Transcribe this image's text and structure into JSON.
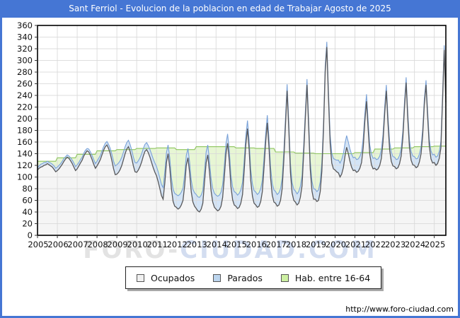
{
  "window": {
    "title": "Sant Ferriol - Evolucion de la poblacion en edad de Trabajar Agosto de 2025",
    "titlebar_color": "#4576d4",
    "border_color": "#4576d4",
    "footer_url": "http://www.foro-ciudad.com"
  },
  "watermark": {
    "part1": "FORO",
    "separator": "-",
    "part2": "CIUDAD.COM"
  },
  "legend": [
    {
      "label": "Ocupados",
      "swatch": "#f0f0f0"
    },
    {
      "label": "Parados",
      "swatch": "#bcd5ee"
    },
    {
      "label": "Hab. entre 16-64",
      "swatch": "#cdf0a2"
    }
  ],
  "chart_data": {
    "type": "area",
    "title": "Sant Ferriol - Evolucion de la poblacion en edad de Trabajar Agosto de 2025",
    "xlabel": "",
    "ylabel": "",
    "ylim": [
      0,
      360
    ],
    "y_tick_step": 20,
    "grid": true,
    "legend_position": "bottom",
    "x_monthly_from": "2005-01",
    "x_monthly_to": "2025-08",
    "months_count": 248,
    "x_tick_labels": [
      "2005",
      "2006",
      "2007",
      "2008",
      "2009",
      "2010",
      "2011",
      "2012",
      "2013",
      "2014",
      "2015",
      "2016",
      "2017",
      "2018",
      "2019",
      "2020",
      "2021",
      "2022",
      "2023",
      "2024",
      "2025"
    ],
    "colors": {
      "grid": "#d9d9d9",
      "plot_border": "#000000",
      "axis_text": "#111111",
      "plot_bg": "#ffffff"
    },
    "series": [
      {
        "name": "Ocupados",
        "role": "base",
        "line": "#58585a",
        "fill": "#f5f5f5",
        "values": [
          112,
          115,
          117,
          118,
          120,
          121,
          123,
          121,
          119,
          117,
          113,
          109,
          111,
          114,
          118,
          122,
          127,
          131,
          134,
          132,
          128,
          123,
          117,
          111,
          114,
          119,
          124,
          129,
          136,
          141,
          145,
          143,
          137,
          130,
          122,
          115,
          119,
          124,
          130,
          138,
          146,
          152,
          155,
          149,
          140,
          128,
          114,
          104,
          105,
          108,
          113,
          120,
          130,
          140,
          148,
          152,
          144,
          132,
          119,
          109,
          108,
          112,
          118,
          126,
          136,
          144,
          147,
          142,
          134,
          125,
          116,
          108,
          102,
          92,
          80,
          68,
          62,
          90,
          125,
          140,
          116,
          80,
          58,
          50,
          48,
          45,
          47,
          52,
          60,
          85,
          120,
          133,
          108,
          74,
          57,
          50,
          46,
          42,
          40,
          45,
          55,
          90,
          125,
          138,
          110,
          76,
          57,
          48,
          45,
          42,
          44,
          50,
          65,
          100,
          140,
          158,
          128,
          84,
          61,
          52,
          50,
          46,
          48,
          55,
          70,
          110,
          155,
          183,
          148,
          94,
          67,
          55,
          52,
          48,
          50,
          58,
          75,
          115,
          160,
          193,
          153,
          98,
          69,
          57,
          55,
          50,
          52,
          60,
          80,
          130,
          190,
          248,
          182,
          108,
          73,
          60,
          57,
          52,
          55,
          65,
          85,
          140,
          200,
          258,
          188,
          113,
          76,
          62,
          62,
          58,
          60,
          75,
          110,
          180,
          280,
          323,
          238,
          158,
          124,
          114,
          112,
          109,
          107,
          100,
          105,
          116,
          136,
          151,
          140,
          127,
          117,
          111,
          112,
          108,
          110,
          115,
          125,
          150,
          195,
          230,
          183,
          139,
          121,
          114,
          115,
          112,
          114,
          120,
          132,
          160,
          210,
          248,
          193,
          146,
          127,
          119,
          118,
          114,
          116,
          123,
          136,
          168,
          220,
          262,
          198,
          150,
          129,
          121,
          120,
          116,
          118,
          126,
          140,
          172,
          225,
          258,
          203,
          153,
          131,
          124,
          125,
          120,
          123,
          132,
          150,
          230,
          318,
          228
        ]
      },
      {
        "name": "Parados",
        "role": "stacked-on-Ocupados",
        "line": "#7aa2d8",
        "fill": "#d3e4f6",
        "values": [
          4,
          4,
          5,
          5,
          5,
          4,
          4,
          4,
          5,
          5,
          6,
          6,
          6,
          6,
          5,
          5,
          5,
          4,
          4,
          4,
          5,
          6,
          7,
          7,
          7,
          6,
          6,
          5,
          5,
          5,
          4,
          5,
          6,
          7,
          8,
          8,
          8,
          8,
          7,
          7,
          6,
          6,
          6,
          7,
          9,
          11,
          13,
          15,
          16,
          16,
          15,
          14,
          13,
          12,
          11,
          11,
          12,
          14,
          15,
          16,
          16,
          16,
          15,
          14,
          13,
          12,
          12,
          12,
          13,
          14,
          15,
          16,
          16,
          17,
          18,
          19,
          20,
          19,
          17,
          15,
          17,
          19,
          21,
          22,
          22,
          23,
          23,
          22,
          21,
          19,
          17,
          16,
          18,
          20,
          22,
          23,
          24,
          24,
          25,
          24,
          22,
          20,
          18,
          17,
          19,
          21,
          23,
          24,
          24,
          25,
          25,
          24,
          22,
          20,
          17,
          16,
          18,
          20,
          22,
          23,
          23,
          23,
          24,
          23,
          21,
          18,
          15,
          14,
          16,
          19,
          21,
          22,
          22,
          22,
          23,
          22,
          20,
          17,
          14,
          13,
          15,
          18,
          20,
          21,
          20,
          20,
          21,
          20,
          18,
          15,
          12,
          11,
          13,
          16,
          18,
          19,
          19,
          19,
          20,
          19,
          17,
          14,
          11,
          10,
          12,
          15,
          17,
          18,
          17,
          17,
          18,
          17,
          15,
          12,
          10,
          9,
          12,
          15,
          17,
          18,
          18,
          20,
          22,
          24,
          25,
          24,
          22,
          20,
          20,
          21,
          22,
          22,
          22,
          22,
          21,
          20,
          18,
          16,
          13,
          12,
          14,
          16,
          18,
          18,
          18,
          18,
          17,
          16,
          15,
          13,
          11,
          10,
          12,
          14,
          16,
          16,
          16,
          16,
          15,
          14,
          13,
          12,
          10,
          9,
          11,
          13,
          15,
          15,
          15,
          15,
          14,
          13,
          12,
          11,
          9,
          8,
          10,
          12,
          14,
          14,
          14,
          14,
          13,
          12,
          11,
          10,
          8,
          7
        ]
      },
      {
        "name": "Hab. entre 16-64",
        "role": "independent-total",
        "note": "constant per calendar year, one value per year 2005-2025",
        "line": "#8cc45c",
        "fill": "#e7f6d4",
        "values_by_year": [
          127,
          133,
          139,
          145,
          147,
          149,
          150,
          147,
          152,
          152,
          150,
          149,
          143,
          141,
          140,
          140,
          142,
          148,
          150,
          152,
          153
        ]
      }
    ]
  }
}
